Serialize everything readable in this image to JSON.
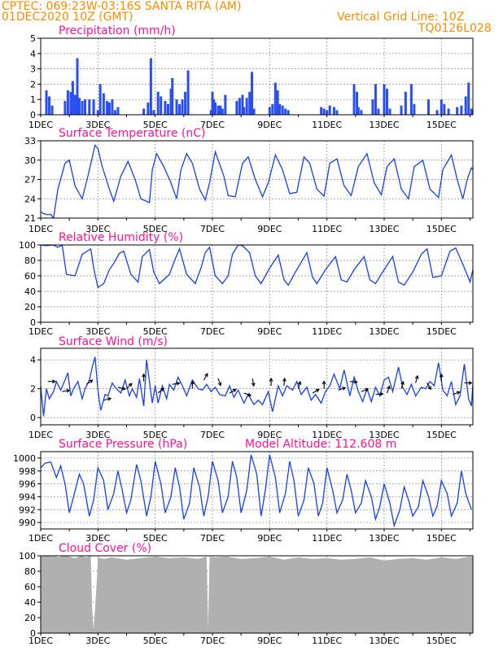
{
  "header": {
    "line1": "CPTEC:   069:23W-03:16S   SANTA RITA (AM)",
    "line2": "01DEC2020 10Z (GMT)",
    "grid_note": "Vertical Grid Line: 10Z",
    "code": "TQ0126L028"
  },
  "colors": {
    "header_text": "#ff8c00",
    "panel_title": "#ff1493",
    "series": "#1a3fe6",
    "bars": "#2a4ff0",
    "cloud": "#b0b0b0",
    "grid": "#888888",
    "wind_arrow": "#000000"
  },
  "x_axis": {
    "tick_labels": [
      "1DEC",
      "3DEC",
      "5DEC",
      "7DEC",
      "9DEC",
      "11DEC",
      "13DEC",
      "15DEC"
    ],
    "tick_days": [
      1,
      3,
      5,
      7,
      9,
      11,
      13,
      15
    ],
    "range_days": [
      1,
      16.1
    ]
  },
  "chart_data": [
    {
      "id": "precip",
      "type": "bar",
      "title": "Precipitation (mm/h)",
      "ylim": [
        0,
        5
      ],
      "yticks": [
        0,
        1,
        2,
        3,
        4,
        5
      ],
      "grid": true,
      "bars": [
        [
          1.2,
          1.6
        ],
        [
          1.3,
          1.2
        ],
        [
          1.4,
          0.6
        ],
        [
          1.85,
          0.9
        ],
        [
          1.95,
          1.6
        ],
        [
          2.05,
          1.5
        ],
        [
          2.12,
          2.2
        ],
        [
          2.2,
          1.3
        ],
        [
          2.28,
          3.7
        ],
        [
          2.35,
          1.1
        ],
        [
          2.45,
          0.9
        ],
        [
          2.55,
          1.0
        ],
        [
          2.7,
          1.0
        ],
        [
          2.85,
          1.0
        ],
        [
          3.0,
          0.3
        ],
        [
          3.08,
          2.0
        ],
        [
          3.2,
          1.4
        ],
        [
          3.32,
          0.9
        ],
        [
          3.4,
          0.8
        ],
        [
          3.5,
          1.0
        ],
        [
          3.6,
          0.3
        ],
        [
          3.7,
          0.5
        ],
        [
          4.6,
          0.4
        ],
        [
          4.75,
          0.8
        ],
        [
          4.85,
          3.7
        ],
        [
          4.95,
          0.3
        ],
        [
          5.1,
          1.5
        ],
        [
          5.2,
          1.2
        ],
        [
          5.35,
          0.9
        ],
        [
          5.45,
          0.7
        ],
        [
          5.55,
          1.7
        ],
        [
          5.6,
          2.4
        ],
        [
          5.75,
          1.0
        ],
        [
          5.85,
          0.7
        ],
        [
          5.95,
          1.0
        ],
        [
          6.05,
          1.5
        ],
        [
          6.15,
          2.9
        ],
        [
          6.95,
          0.3
        ],
        [
          7.0,
          1.5
        ],
        [
          7.05,
          1.0
        ],
        [
          7.1,
          0.8
        ],
        [
          7.2,
          0.6
        ],
        [
          7.28,
          0.6
        ],
        [
          7.35,
          0.4
        ],
        [
          7.45,
          1.3
        ],
        [
          7.85,
          0.9
        ],
        [
          7.95,
          1.1
        ],
        [
          8.05,
          1.3
        ],
        [
          8.1,
          0.5
        ],
        [
          8.2,
          1.1
        ],
        [
          8.3,
          1.5
        ],
        [
          8.38,
          2.8
        ],
        [
          8.45,
          0.4
        ],
        [
          9.0,
          0.5
        ],
        [
          9.1,
          0.7
        ],
        [
          9.2,
          2.1
        ],
        [
          9.28,
          1.6
        ],
        [
          9.35,
          0.7
        ],
        [
          9.45,
          0.6
        ],
        [
          9.55,
          0.4
        ],
        [
          9.65,
          0.3
        ],
        [
          10.8,
          0.5
        ],
        [
          10.9,
          0.4
        ],
        [
          11.0,
          0.3
        ],
        [
          11.1,
          0.6
        ],
        [
          11.25,
          0.5
        ],
        [
          11.35,
          0.3
        ],
        [
          11.95,
          2.0
        ],
        [
          12.05,
          1.5
        ],
        [
          12.1,
          0.5
        ],
        [
          12.2,
          0.3
        ],
        [
          12.6,
          1.0
        ],
        [
          12.7,
          2.0
        ],
        [
          12.8,
          0.4
        ],
        [
          13.0,
          2.0
        ],
        [
          13.1,
          1.7
        ],
        [
          13.2,
          0.4
        ],
        [
          13.6,
          0.6
        ],
        [
          13.75,
          1.5
        ],
        [
          13.95,
          2.0
        ],
        [
          14.05,
          0.7
        ],
        [
          14.55,
          1.0
        ],
        [
          14.85,
          0.3
        ],
        [
          15.0,
          1.0
        ],
        [
          15.1,
          0.7
        ],
        [
          15.25,
          0.4
        ],
        [
          15.55,
          0.5
        ],
        [
          15.7,
          0.6
        ],
        [
          15.85,
          1.2
        ],
        [
          15.95,
          2.1
        ],
        [
          16.05,
          0.4
        ]
      ]
    },
    {
      "id": "temp",
      "type": "line",
      "title": "Surface Temperature (nC)",
      "ylim": [
        21,
        33
      ],
      "yticks": [
        21,
        24,
        27,
        30,
        33
      ],
      "grid": true,
      "x": [
        1,
        1.1,
        1.25,
        1.35,
        1.45,
        1.6,
        1.85,
        2.0,
        2.2,
        2.45,
        2.65,
        2.9,
        3.0,
        3.15,
        3.4,
        3.55,
        3.8,
        4.05,
        4.3,
        4.5,
        4.8,
        4.9,
        5.05,
        5.3,
        5.55,
        5.75,
        5.9,
        6.1,
        6.3,
        6.55,
        6.75,
        6.9,
        7.1,
        7.4,
        7.55,
        7.8,
        8.05,
        8.25,
        8.5,
        8.75,
        8.95,
        9.2,
        9.45,
        9.7,
        9.95,
        10.2,
        10.4,
        10.65,
        10.9,
        11.1,
        11.35,
        11.6,
        11.85,
        12.1,
        12.4,
        12.65,
        12.9,
        13.1,
        13.35,
        13.6,
        13.85,
        14.05,
        14.35,
        14.6,
        14.9,
        15.05,
        15.35,
        15.55,
        15.75,
        15.9,
        16.05,
        16.1
      ],
      "y": [
        22.0,
        21.7,
        21.5,
        21.6,
        21.0,
        25.5,
        29.5,
        30.0,
        26.0,
        24.0,
        27.5,
        32.3,
        31.8,
        29.0,
        25.5,
        23.6,
        27.5,
        29.8,
        27.0,
        24.0,
        23.4,
        28.5,
        31.0,
        29.0,
        26.5,
        24.0,
        28.5,
        31.0,
        29.5,
        25.5,
        23.8,
        26.5,
        31.3,
        27.5,
        24.5,
        24.3,
        29.5,
        30.5,
        27.0,
        24.3,
        26.5,
        30.8,
        28.5,
        24.8,
        25.0,
        30.5,
        29.5,
        25.5,
        24.4,
        29.5,
        30.2,
        26.0,
        24.5,
        29.0,
        31.0,
        26.5,
        24.6,
        29.0,
        30.2,
        25.5,
        24.0,
        29.0,
        30.0,
        25.5,
        24.2,
        28.5,
        30.8,
        27.0,
        24.0,
        27.0,
        28.8,
        28.5
      ]
    },
    {
      "id": "rh",
      "type": "line",
      "title": "Relative Humidity (%)",
      "ylim": [
        0,
        100
      ],
      "yticks": [
        0,
        20,
        40,
        60,
        80,
        100
      ],
      "grid": true,
      "x": [
        1,
        1.2,
        1.45,
        1.6,
        1.75,
        1.9,
        2.2,
        2.45,
        2.75,
        2.85,
        3.0,
        3.2,
        3.4,
        3.55,
        3.75,
        3.9,
        4.15,
        4.4,
        4.55,
        4.8,
        4.95,
        5.15,
        5.5,
        5.7,
        5.85,
        6.1,
        6.4,
        6.6,
        6.75,
        6.9,
        7.1,
        7.35,
        7.55,
        7.7,
        7.9,
        8.05,
        8.3,
        8.5,
        8.7,
        9.0,
        9.3,
        9.5,
        9.65,
        9.9,
        10.3,
        10.5,
        10.65,
        10.95,
        11.3,
        11.5,
        11.7,
        11.95,
        12.3,
        12.5,
        12.7,
        13.0,
        13.3,
        13.5,
        13.7,
        14.0,
        14.3,
        14.5,
        14.7,
        15.0,
        15.3,
        15.5,
        15.75,
        16.0,
        16.1
      ],
      "y": [
        100,
        99,
        100,
        97,
        100,
        62,
        60,
        88,
        95,
        70,
        45,
        50,
        68,
        76,
        89,
        92,
        62,
        52,
        85,
        94,
        65,
        50,
        62,
        82,
        95,
        62,
        50,
        70,
        90,
        97,
        60,
        50,
        60,
        88,
        100,
        99,
        90,
        60,
        50,
        70,
        87,
        55,
        48,
        65,
        90,
        58,
        50,
        68,
        85,
        55,
        52,
        68,
        85,
        55,
        50,
        68,
        85,
        52,
        48,
        65,
        88,
        95,
        58,
        60,
        92,
        96,
        75,
        52,
        68
      ]
    },
    {
      "id": "wind",
      "type": "line",
      "title": "Surface Wind (m/s)",
      "ylim": [
        -0.5,
        4.8
      ],
      "yticks": [
        0,
        2,
        4
      ],
      "grid": true,
      "x": [
        1,
        1.1,
        1.2,
        1.3,
        1.45,
        1.55,
        1.7,
        1.85,
        1.95,
        2.05,
        2.15,
        2.3,
        2.45,
        2.55,
        2.7,
        2.8,
        2.9,
        3.0,
        3.1,
        3.25,
        3.35,
        3.5,
        3.6,
        3.8,
        3.95,
        4.1,
        4.2,
        4.35,
        4.45,
        4.6,
        4.7,
        4.8,
        4.9,
        5.0,
        5.1,
        5.25,
        5.4,
        5.5,
        5.65,
        5.8,
        5.95,
        6.1,
        6.3,
        6.5,
        6.65,
        6.8,
        6.95,
        7.1,
        7.25,
        7.45,
        7.6,
        7.75,
        7.9,
        8.1,
        8.25,
        8.45,
        8.6,
        8.75,
        8.95,
        9.1,
        9.3,
        9.45,
        9.6,
        9.8,
        9.95,
        10.1,
        10.3,
        10.45,
        10.6,
        10.8,
        10.95,
        11.1,
        11.25,
        11.45,
        11.6,
        11.8,
        11.95,
        12.1,
        12.25,
        12.4,
        12.55,
        12.7,
        12.85,
        13.0,
        13.15,
        13.3,
        13.5,
        13.65,
        13.8,
        13.95,
        14.1,
        14.3,
        14.45,
        14.6,
        14.75,
        14.9,
        15.05,
        15.2,
        15.35,
        15.5,
        15.65,
        15.8,
        15.95,
        16.05,
        16.1
      ],
      "y": [
        2.2,
        0.1,
        2.0,
        1.3,
        1.8,
        2.5,
        1.9,
        2.6,
        3.1,
        1.5,
        2.0,
        2.5,
        1.3,
        2.0,
        2.6,
        3.5,
        4.2,
        1.9,
        0.5,
        1.6,
        1.5,
        2.4,
        2.1,
        1.7,
        2.6,
        1.5,
        2.0,
        1.4,
        2.7,
        0.8,
        4.0,
        2.5,
        1.0,
        2.2,
        1.0,
        2.2,
        1.3,
        2.3,
        1.9,
        2.8,
        2.2,
        1.5,
        2.6,
        2.0,
        1.9,
        2.3,
        1.8,
        2.1,
        1.6,
        1.5,
        2.2,
        1.4,
        1.9,
        1.0,
        1.6,
        0.9,
        1.2,
        0.9,
        1.8,
        0.4,
        2.2,
        1.5,
        2.2,
        1.9,
        2.5,
        1.6,
        2.1,
        1.2,
        1.6,
        1.0,
        1.8,
        2.2,
        3.0,
        2.0,
        3.3,
        1.5,
        2.8,
        1.8,
        1.1,
        2.0,
        1.1,
        2.1,
        1.5,
        2.6,
        2.8,
        1.8,
        3.5,
        2.1,
        1.6,
        2.3,
        1.5,
        2.1,
        2.0,
        2.5,
        2.2,
        3.8,
        1.9,
        1.5,
        2.5,
        0.9,
        1.5,
        3.7,
        1.3,
        0.8,
        2.3
      ],
      "arrows": [
        [
          1.25,
          2.5,
          90
        ],
        [
          1.75,
          1.8,
          80
        ],
        [
          2.6,
          2.3,
          55
        ],
        [
          3.2,
          1.2,
          75
        ],
        [
          3.7,
          2.1,
          105
        ],
        [
          4.0,
          2.0,
          45
        ],
        [
          4.6,
          2.5,
          0
        ],
        [
          5.1,
          1.7,
          50
        ],
        [
          5.6,
          2.3,
          80
        ],
        [
          6.3,
          2.0,
          0
        ],
        [
          6.7,
          2.6,
          30
        ],
        [
          7.2,
          2.7,
          160
        ],
        [
          7.6,
          1.7,
          60
        ],
        [
          8.1,
          1.7,
          110
        ],
        [
          8.4,
          2.7,
          170
        ],
        [
          9.05,
          2.2,
          0
        ],
        [
          9.5,
          2.2,
          5
        ],
        [
          10.0,
          2.0,
          15
        ],
        [
          10.5,
          1.7,
          60
        ],
        [
          10.9,
          2.0,
          0
        ],
        [
          11.4,
          1.9,
          70
        ],
        [
          11.8,
          2.5,
          95
        ],
        [
          12.2,
          1.8,
          70
        ],
        [
          12.7,
          1.6,
          85
        ],
        [
          13.1,
          1.7,
          20
        ],
        [
          13.6,
          2.0,
          15
        ],
        [
          14.1,
          2.4,
          15
        ],
        [
          14.5,
          2.4,
          150
        ],
        [
          15.0,
          2.5,
          0
        ],
        [
          15.4,
          1.6,
          70
        ],
        [
          15.8,
          2.4,
          90
        ]
      ]
    },
    {
      "id": "pres",
      "type": "line",
      "title": "Surface Pressure (hPa)",
      "annotation": "Model Altitude: 112.608  m",
      "ylim": [
        989,
        1001
      ],
      "yticks": [
        990,
        992,
        994,
        996,
        998,
        1000
      ],
      "grid": true,
      "x": [
        1,
        1.15,
        1.35,
        1.55,
        1.7,
        1.85,
        2.0,
        2.15,
        2.35,
        2.5,
        2.7,
        2.85,
        3.0,
        3.2,
        3.35,
        3.55,
        3.7,
        3.85,
        4.0,
        4.15,
        4.35,
        4.5,
        4.7,
        4.85,
        5.0,
        5.2,
        5.35,
        5.55,
        5.7,
        5.85,
        6.0,
        6.2,
        6.35,
        6.55,
        6.7,
        6.85,
        7.0,
        7.2,
        7.35,
        7.55,
        7.7,
        7.85,
        8.0,
        8.2,
        8.35,
        8.55,
        8.7,
        8.85,
        9.0,
        9.2,
        9.35,
        9.55,
        9.7,
        9.85,
        10.0,
        10.2,
        10.35,
        10.55,
        10.7,
        10.85,
        11.0,
        11.2,
        11.35,
        11.55,
        11.7,
        11.85,
        12.0,
        12.2,
        12.35,
        12.55,
        12.7,
        12.85,
        13.0,
        13.2,
        13.35,
        13.55,
        13.7,
        13.85,
        14.0,
        14.2,
        14.35,
        14.55,
        14.7,
        14.85,
        15.0,
        15.2,
        15.35,
        15.55,
        15.7,
        15.85,
        16.05
      ],
      "y": [
        998.5,
        999.2,
        999.4,
        997.0,
        998.8,
        996.0,
        991.5,
        994.0,
        997.5,
        996.0,
        991.0,
        993.5,
        998.5,
        996.5,
        992.0,
        994.5,
        998.0,
        995.0,
        991.5,
        993.5,
        999.0,
        996.5,
        991.0,
        994.0,
        999.5,
        996.0,
        991.5,
        994.0,
        998.5,
        995.5,
        990.5,
        993.0,
        998.5,
        995.5,
        991.0,
        994.0,
        999.5,
        996.5,
        991.5,
        994.0,
        999.5,
        997.0,
        991.5,
        995.0,
        1000.5,
        997.5,
        991.0,
        995.0,
        1000.5,
        997.0,
        991.5,
        994.5,
        999.5,
        996.5,
        991.0,
        993.5,
        998.5,
        996.0,
        991.0,
        993.0,
        998.5,
        995.0,
        991.5,
        993.5,
        997.5,
        995.0,
        991.5,
        993.0,
        996.5,
        994.0,
        990.5,
        992.5,
        996.0,
        993.0,
        989.5,
        992.0,
        995.5,
        993.5,
        991.0,
        992.5,
        996.5,
        994.0,
        991.0,
        992.5,
        996.5,
        994.5,
        991.0,
        993.0,
        998.0,
        994.5,
        992.0
      ]
    },
    {
      "id": "cloud",
      "type": "area",
      "title": "Cloud Cover (%)",
      "ylim": [
        0,
        100
      ],
      "yticks": [
        0,
        20,
        40,
        60,
        80,
        100
      ],
      "grid": true,
      "x": [
        1,
        1.3,
        1.45,
        1.5,
        1.6,
        1.7,
        1.8,
        2.0,
        2.2,
        2.4,
        2.6,
        2.75,
        2.8,
        2.85,
        2.95,
        3.0,
        3.2,
        3.5,
        4.0,
        4.5,
        5.0,
        5.5,
        6.0,
        6.5,
        6.8,
        6.85,
        6.9,
        7.0,
        7.5,
        8.0,
        8.5,
        9.0,
        9.5,
        10.0,
        10.5,
        11.0,
        11.5,
        12.0,
        12.5,
        13.0,
        13.5,
        14.0,
        14.5,
        15.0,
        15.5,
        16.0,
        16.1
      ],
      "y": [
        99,
        100,
        99,
        100,
        98,
        99,
        100,
        99,
        97,
        100,
        98,
        100,
        30,
        5,
        60,
        98,
        96,
        98,
        95,
        97,
        99,
        97,
        98,
        96,
        99,
        5,
        99,
        98,
        99,
        96,
        97,
        99,
        95,
        98,
        96,
        97,
        95,
        96,
        98,
        94,
        96,
        97,
        95,
        98,
        96,
        99,
        98
      ]
    }
  ]
}
